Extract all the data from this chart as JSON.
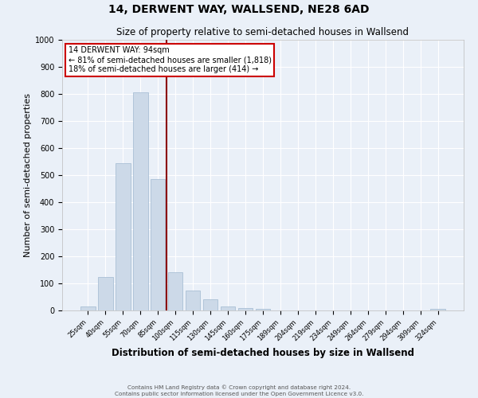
{
  "title": "14, DERWENT WAY, WALLSEND, NE28 6AD",
  "subtitle": "Size of property relative to semi-detached houses in Wallsend",
  "xlabel": "Distribution of semi-detached houses by size in Wallsend",
  "ylabel": "Number of semi-detached properties",
  "bar_labels": [
    "25sqm",
    "40sqm",
    "55sqm",
    "70sqm",
    "85sqm",
    "100sqm",
    "115sqm",
    "130sqm",
    "145sqm",
    "160sqm",
    "175sqm",
    "189sqm",
    "204sqm",
    "219sqm",
    "234sqm",
    "249sqm",
    "264sqm",
    "279sqm",
    "294sqm",
    "309sqm",
    "324sqm"
  ],
  "bar_values": [
    15,
    125,
    545,
    805,
    485,
    140,
    75,
    40,
    15,
    10,
    5,
    0,
    0,
    0,
    0,
    0,
    0,
    0,
    0,
    0,
    5
  ],
  "bar_color": "#ccd9e8",
  "bar_edge_color": "#a0b8d0",
  "vline_color": "#8b0000",
  "ylim": [
    0,
    1000
  ],
  "yticks": [
    0,
    100,
    200,
    300,
    400,
    500,
    600,
    700,
    800,
    900,
    1000
  ],
  "annotation_title": "14 DERWENT WAY: 94sqm",
  "annotation_line1": "← 81% of semi-detached houses are smaller (1,818)",
  "annotation_line2": "18% of semi-detached houses are larger (414) →",
  "annotation_box_color": "#ffffff",
  "annotation_box_edge": "#cc0000",
  "footer_line1": "Contains HM Land Registry data © Crown copyright and database right 2024.",
  "footer_line2": "Contains public sector information licensed under the Open Government Licence v3.0.",
  "background_color": "#eaf0f8",
  "grid_color": "#ffffff",
  "title_fontsize": 10,
  "subtitle_fontsize": 8.5,
  "ylabel_fontsize": 8,
  "xlabel_fontsize": 8.5
}
